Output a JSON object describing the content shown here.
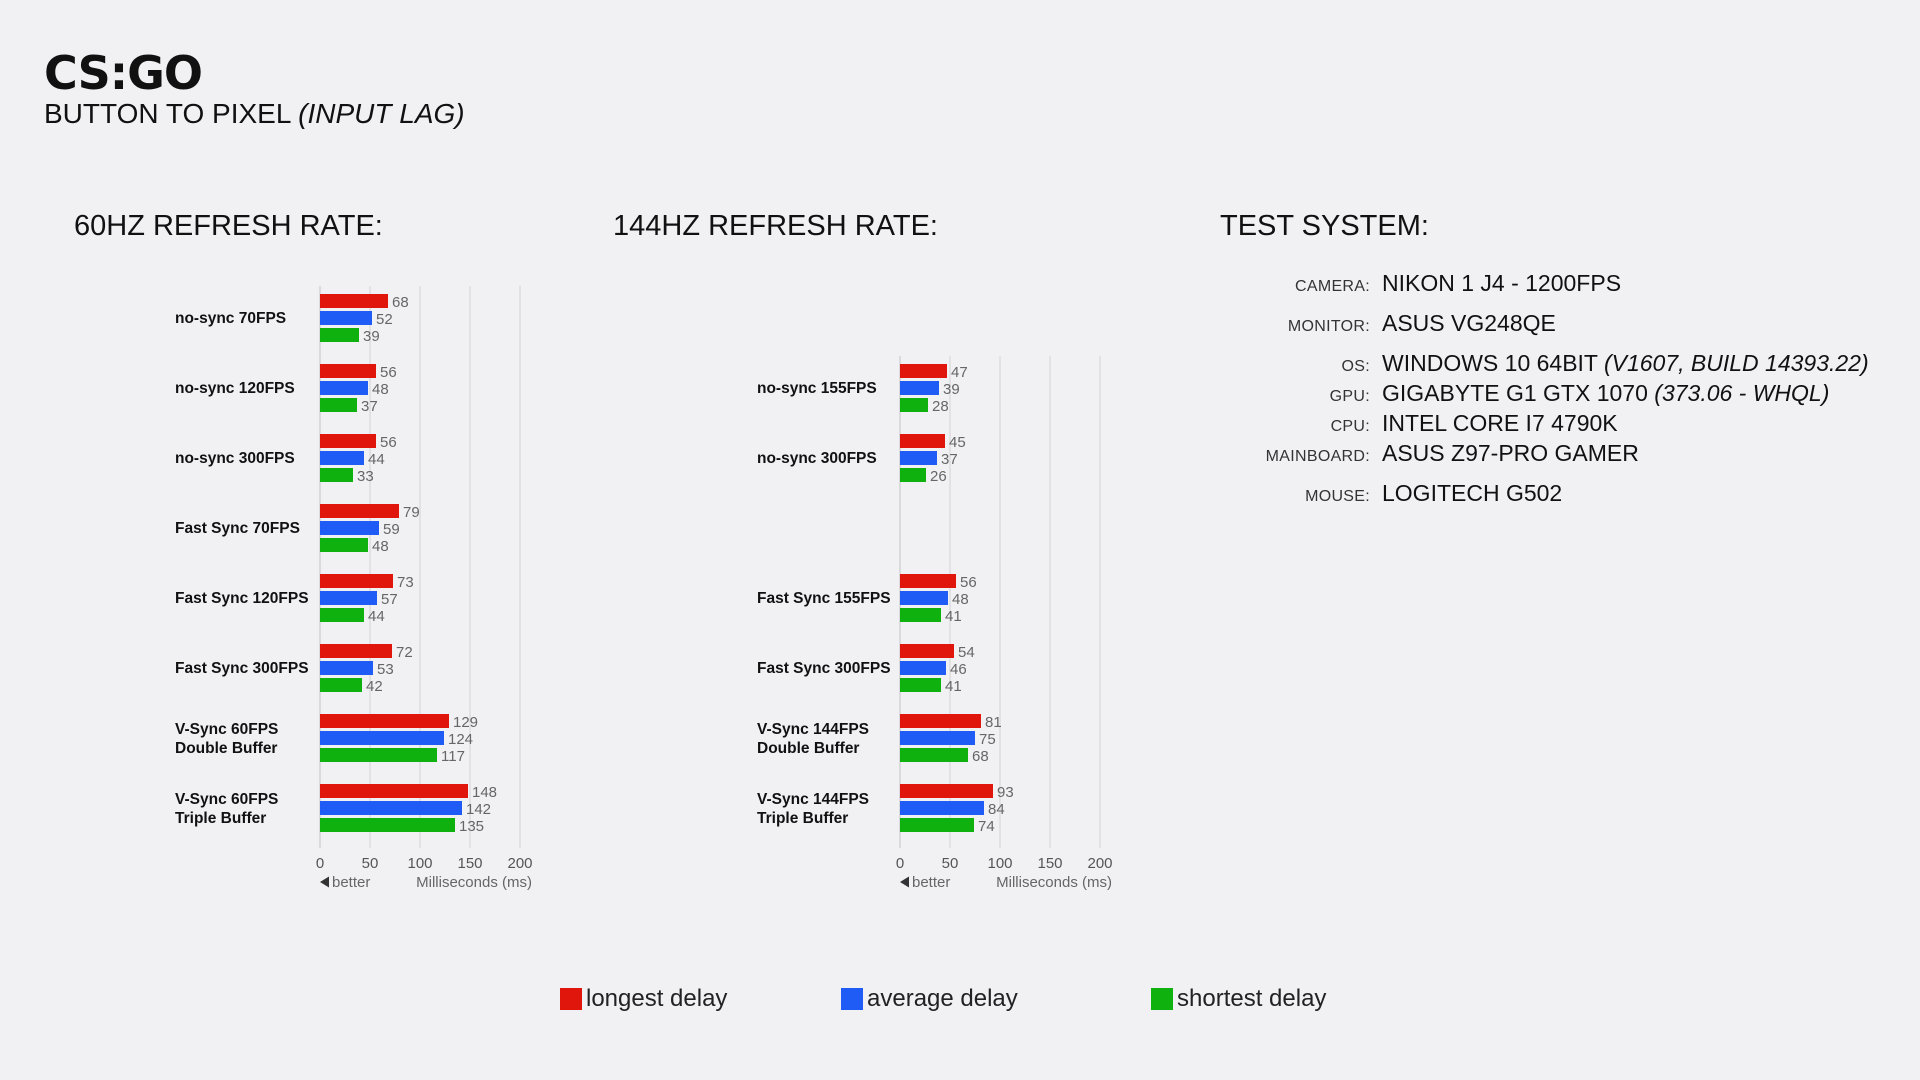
{
  "header": {
    "title": "CS:GO",
    "subtitle_main": "BUTTON TO PIXEL ",
    "subtitle_italic": "(INPUT LAG)"
  },
  "sections": {
    "hz60": "60HZ REFRESH RATE:",
    "hz144": "144HZ REFRESH RATE:",
    "system": "TEST SYSTEM:"
  },
  "test_system": [
    {
      "key": "CAMERA:",
      "value": "NIKON 1 J4 - 1200FPS",
      "italic": ""
    },
    {
      "key": "MONITOR:",
      "value": "ASUS VG248QE",
      "italic": ""
    },
    {
      "key": "OS:",
      "value": "WINDOWS 10 64BIT ",
      "italic": "(V1607, BUILD 14393.22)"
    },
    {
      "key": "GPU:",
      "value": "GIGABYTE G1 GTX 1070 ",
      "italic": "(373.06 - WHQL)"
    },
    {
      "key": "CPU:",
      "value": "INTEL CORE I7 4790K",
      "italic": ""
    },
    {
      "key": "MAINBOARD:",
      "value": "ASUS Z97-PRO GAMER",
      "italic": ""
    },
    {
      "key": "MOUSE:",
      "value": "LOGITECH G502",
      "italic": ""
    }
  ],
  "legend": [
    {
      "label": "longest delay",
      "color": "#e0160c"
    },
    {
      "label": "average delay",
      "color": "#1f5cf5"
    },
    {
      "label": "shortest delay",
      "color": "#0fb10f"
    }
  ],
  "chart_data": [
    {
      "type": "bar",
      "orientation": "horizontal",
      "title": "60HZ REFRESH RATE:",
      "xlabel": "Milliseconds (ms)",
      "x_note": "better",
      "xlim": [
        0,
        200
      ],
      "xticks": [
        0,
        50,
        100,
        150,
        200
      ],
      "grid": true,
      "categories": [
        [
          "no-sync 70FPS"
        ],
        [
          "no-sync 120FPS"
        ],
        [
          "no-sync 300FPS"
        ],
        [
          "Fast Sync 70FPS"
        ],
        [
          "Fast Sync 120FPS"
        ],
        [
          "Fast Sync 300FPS"
        ],
        [
          "V-Sync 60FPS",
          "Double Buffer"
        ],
        [
          "V-Sync 60FPS",
          "Triple Buffer"
        ]
      ],
      "series": [
        {
          "name": "longest delay",
          "color": "#e0160c",
          "values": [
            68,
            56,
            56,
            79,
            73,
            72,
            129,
            148
          ]
        },
        {
          "name": "average delay",
          "color": "#1f5cf5",
          "values": [
            52,
            48,
            44,
            59,
            57,
            53,
            124,
            142
          ]
        },
        {
          "name": "shortest delay",
          "color": "#0fb10f",
          "values": [
            39,
            37,
            33,
            48,
            44,
            42,
            117,
            135
          ]
        }
      ]
    },
    {
      "type": "bar",
      "orientation": "horizontal",
      "title": "144HZ REFRESH RATE:",
      "xlabel": "Milliseconds (ms)",
      "x_note": "better",
      "xlim": [
        0,
        200
      ],
      "xticks": [
        0,
        50,
        100,
        150,
        200
      ],
      "grid": true,
      "categories": [
        [
          "no-sync 155FPS"
        ],
        [
          "no-sync 300FPS"
        ],
        [],
        [
          "Fast Sync 155FPS"
        ],
        [
          "Fast Sync 300FPS"
        ],
        [
          "V-Sync 144FPS",
          "Double Buffer"
        ],
        [
          "V-Sync 144FPS",
          "Triple Buffer"
        ]
      ],
      "series": [
        {
          "name": "longest delay",
          "color": "#e0160c",
          "values": [
            47,
            45,
            null,
            56,
            54,
            81,
            93
          ]
        },
        {
          "name": "average delay",
          "color": "#1f5cf5",
          "values": [
            39,
            37,
            null,
            48,
            46,
            75,
            84
          ]
        },
        {
          "name": "shortest delay",
          "color": "#0fb10f",
          "values": [
            28,
            26,
            null,
            41,
            41,
            68,
            74
          ]
        }
      ]
    }
  ]
}
